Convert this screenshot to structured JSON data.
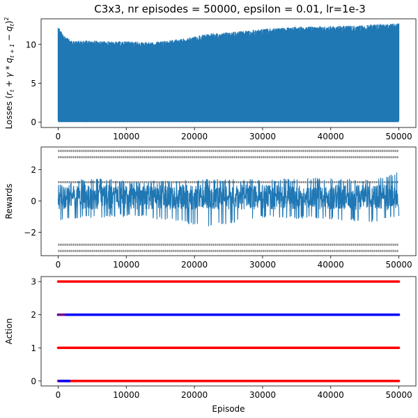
{
  "title": "C3x3, nr episodes = 50000, epsilon = 0.01, lr=1e-3",
  "colors": {
    "series_blue": "#1f77b4",
    "grey": "#808080",
    "red": "#ff0000",
    "navy": "#0000ff",
    "axis": "#000000"
  },
  "chart_data": [
    {
      "id": "losses",
      "type": "line",
      "title": "C3x3, nr episodes = 50000, epsilon = 0.01, lr=1e-3",
      "xlabel": "",
      "ylabel": "Losses (r_t + γ * q_{t+1} − q_t)^2",
      "xlim": [
        -2500,
        52500
      ],
      "ylim": [
        -0.7,
        13.3
      ],
      "xticks": [
        0,
        10000,
        20000,
        30000,
        40000,
        50000
      ],
      "yticks": [
        0,
        5,
        10
      ],
      "series": [
        {
          "color": "#1f77b4",
          "description": "losses per episode, dense band from 0 to upper envelope",
          "envelope_x": [
            0,
            800,
            2000,
            5000,
            10000,
            14000,
            18000,
            22000,
            25000,
            30000,
            35000,
            40000,
            45000,
            48000,
            50000
          ],
          "envelope_top": [
            12.3,
            11.2,
            10.5,
            10.5,
            10.4,
            10.3,
            10.7,
            11.4,
            11.6,
            12.0,
            12.3,
            12.4,
            12.5,
            12.7,
            12.7
          ],
          "band_bottom": 0.0,
          "spike_max": 12.7
        }
      ]
    },
    {
      "id": "rewards",
      "type": "line",
      "xlabel": "",
      "ylabel": "Rewards",
      "xlim": [
        -2500,
        52500
      ],
      "ylim": [
        -3.5,
        3.45
      ],
      "xticks": [
        0,
        10000,
        20000,
        30000,
        40000,
        50000
      ],
      "yticks": [
        -2,
        0,
        2
      ],
      "series": [
        {
          "color": "#808080",
          "kind": "scatter",
          "description": "reward levels per episode",
          "levels": [
            3.2,
            2.8,
            1.2,
            -2.8,
            -3.2
          ]
        },
        {
          "color": "#1f77b4",
          "kind": "line",
          "description": "reward series",
          "mean": 0.25,
          "envelope_x": [
            0,
            5000,
            10000,
            15000,
            22000,
            30000,
            40000,
            46000,
            50000
          ],
          "envelope_top": [
            1.2,
            1.5,
            1.3,
            1.3,
            1.4,
            1.4,
            1.5,
            1.4,
            1.9
          ],
          "envelope_bottom": [
            -1.3,
            -1.1,
            -1.0,
            -1.2,
            -1.7,
            -1.1,
            -1.2,
            -1.4,
            -1.0
          ]
        }
      ]
    },
    {
      "id": "actions",
      "type": "scatter",
      "xlabel": "Episode",
      "ylabel": "Action",
      "xlim": [
        -2500,
        52500
      ],
      "ylim": [
        -0.15,
        3.15
      ],
      "xticks": [
        0,
        10000,
        20000,
        30000,
        40000,
        50000
      ],
      "yticks": [
        0,
        1,
        2,
        3
      ],
      "series": [
        {
          "color": "#ff0000",
          "level": 3,
          "x_range": [
            0,
            50000
          ]
        },
        {
          "color": "#0000ff",
          "level": 2,
          "x_range": [
            0,
            50000
          ]
        },
        {
          "color": "#ff0000",
          "level": 1,
          "x_range": [
            0,
            50000
          ]
        },
        {
          "color": "#ff0000",
          "level": 0,
          "x_range": [
            0,
            50000
          ]
        }
      ]
    }
  ]
}
